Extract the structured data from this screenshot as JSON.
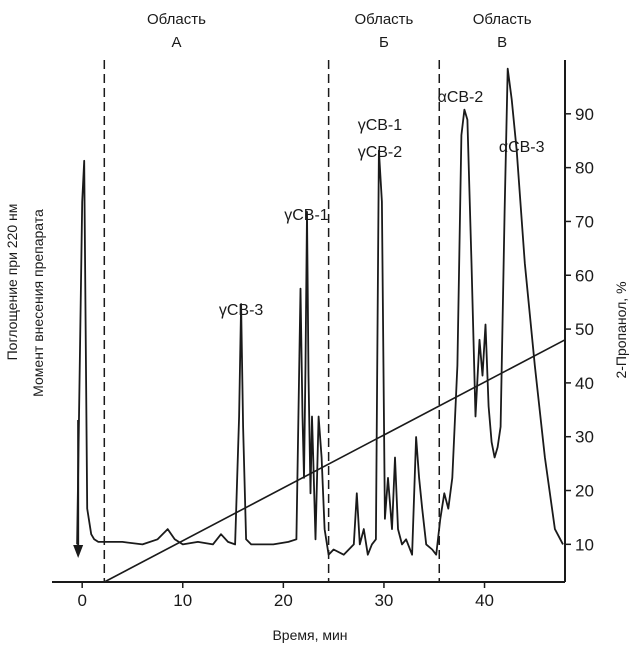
{
  "chart_data": {
    "type": "line",
    "xlabel": "Время, мин",
    "ylabel_left": "Поглощение при 220 нм",
    "ylabel_right": "2-Пропанол, %",
    "xlim": [
      -3,
      48
    ],
    "x_ticks": [
      "0",
      "10",
      "20",
      "30",
      "40"
    ],
    "y_right_lim": [
      3,
      100
    ],
    "y_right_ticks": [
      "10",
      "20",
      "30",
      "40",
      "50",
      "60",
      "70",
      "80",
      "90"
    ],
    "injection_label": "Момент внесения препарата",
    "regions": [
      {
        "name": "Область",
        "letter": "А",
        "x_start": 2.2,
        "x_end": 24.5
      },
      {
        "name": "Область",
        "letter": "Б",
        "x_start": 24.5,
        "x_end": 35.5
      },
      {
        "name": "Область",
        "letter": "В",
        "x_start": 35.5,
        "x_end": 48
      }
    ],
    "peaks": [
      {
        "label": "γCB-3",
        "x": 15.8
      },
      {
        "label": "γCB-1",
        "x": 22.3
      },
      {
        "label": "γCB-1",
        "x": 29.6
      },
      {
        "label": "γCB-2",
        "x": 29.6
      },
      {
        "label": "αCB-2",
        "x": 38.2
      },
      {
        "label": "αCB-3",
        "x": 42.3
      }
    ],
    "series": [
      {
        "x": [
          -0.5,
          0.0,
          0.2,
          0.5,
          0.9,
          1.2,
          1.6,
          2.5,
          4,
          6,
          7.5,
          8.5,
          9.2,
          10,
          11.5,
          13,
          13.8,
          14.5,
          15.2,
          15.6,
          15.8,
          16.0,
          16.3,
          16.8,
          17.5,
          19,
          20.5,
          21.3,
          21.7,
          21.9,
          22.05,
          22.2,
          22.35,
          22.5,
          22.7,
          22.85,
          23.0,
          23.2,
          23.5,
          23.8,
          24.1,
          24.5,
          25,
          26,
          27,
          27.3,
          27.6,
          28,
          28.4,
          28.8,
          29.2,
          29.5,
          29.8,
          30.1,
          30.4,
          30.8,
          31.1,
          31.4,
          31.8,
          32.2,
          32.8,
          33.2,
          33.5,
          33.8,
          34.2,
          34.8,
          35.2,
          35.6,
          36.0,
          36.4,
          36.8,
          37.3,
          37.7,
          38.0,
          38.3,
          38.7,
          39.1,
          39.5,
          39.8,
          40.1,
          40.4,
          40.7,
          41.0,
          41.3,
          41.6,
          42.0,
          42.3,
          42.7,
          43.2,
          44,
          45,
          46,
          47,
          47.8
        ],
        "y": [
          5,
          72,
          80,
          12,
          7,
          6,
          5.5,
          5.5,
          5.5,
          5,
          6,
          8,
          6,
          5,
          5.5,
          5,
          7,
          5.5,
          5,
          30,
          52,
          28,
          6,
          5,
          5,
          5,
          5.5,
          6,
          55,
          30,
          18,
          40,
          70,
          38,
          15,
          30,
          20,
          6,
          30,
          22,
          8,
          3,
          4,
          3,
          5,
          15,
          5,
          8,
          3,
          5,
          6,
          82,
          72,
          10,
          18,
          8,
          22,
          8,
          5,
          6,
          3,
          26,
          18,
          12,
          5,
          4,
          3,
          10,
          15,
          12,
          18,
          40,
          85,
          90,
          88,
          60,
          30,
          45,
          38,
          48,
          32,
          25,
          22,
          24,
          28,
          70,
          98,
          92,
          82,
          60,
          40,
          22,
          8,
          5
        ]
      },
      {
        "name": "2-Пропанол, %",
        "axis": "right",
        "x": [
          2.2,
          48
        ],
        "y": [
          3,
          48
        ]
      }
    ]
  }
}
